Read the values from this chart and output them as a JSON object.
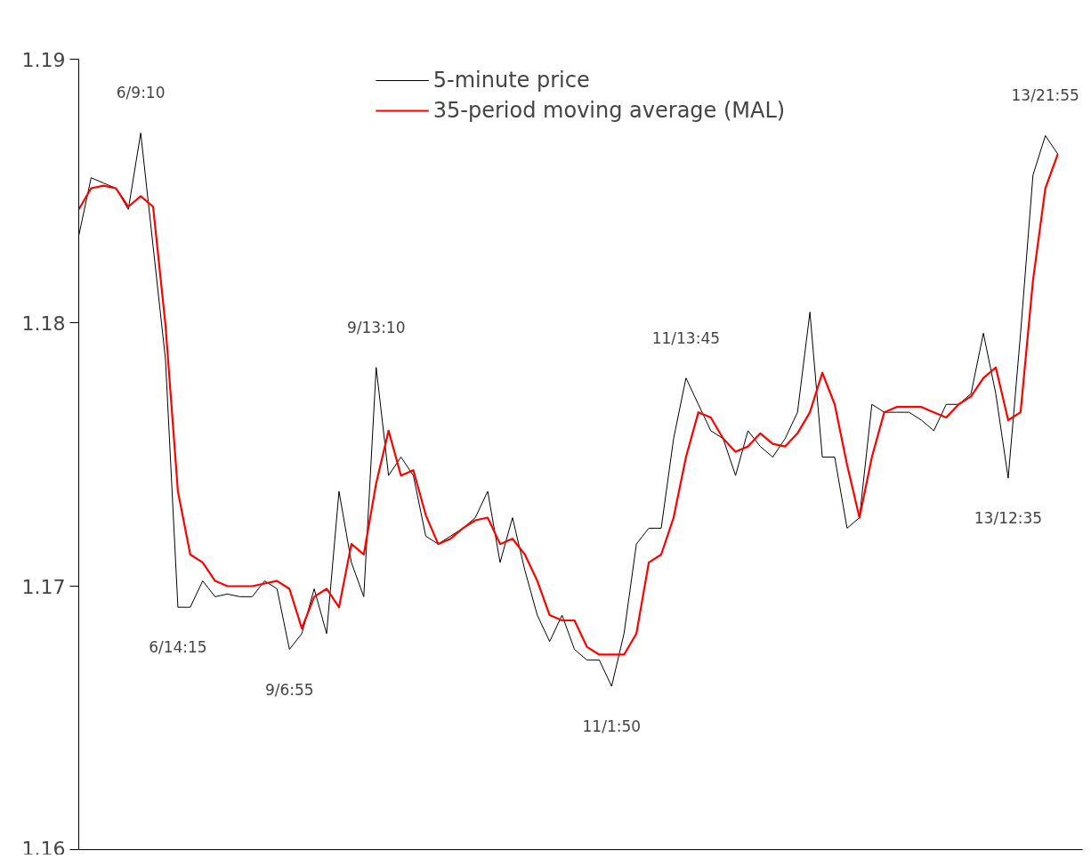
{
  "chart_data": {
    "type": "line",
    "categories": [
      null,
      null,
      null,
      null,
      null,
      null,
      null,
      null,
      null,
      null,
      null,
      null,
      null,
      null,
      null,
      null,
      null,
      null,
      null,
      null,
      null,
      null,
      null,
      null,
      null,
      null,
      null,
      null,
      null,
      null,
      null,
      null,
      null,
      null,
      null,
      null,
      null,
      null,
      null,
      null,
      null,
      null,
      null,
      null,
      null,
      null,
      null,
      null,
      null,
      null,
      null,
      null,
      null,
      null,
      null,
      null,
      null,
      null,
      null,
      null,
      null,
      null,
      null,
      null,
      null,
      null,
      null,
      null,
      null,
      null,
      null,
      null,
      null,
      null,
      null,
      null,
      null,
      null,
      null,
      null
    ],
    "ylim": [
      1.16,
      1.19
    ],
    "yticks": [
      1.16,
      1.17,
      1.18,
      1.19
    ],
    "tick_labels": "y",
    "legend": "top",
    "line_style": "solid",
    "series": [
      {
        "name": "5-minute price",
        "color": "#000000",
        "values": [
          1.1833,
          1.1855,
          1.1853,
          1.1851,
          1.1843,
          1.1872,
          1.1829,
          1.1786,
          1.1692,
          1.1692,
          1.1702,
          1.1696,
          1.1697,
          1.1696,
          1.1696,
          1.1702,
          1.1699,
          1.1676,
          1.1682,
          1.1699,
          1.1682,
          1.1736,
          1.1709,
          1.1696,
          1.1783,
          1.1742,
          1.1749,
          1.1742,
          1.1719,
          1.1716,
          1.1719,
          1.1722,
          1.1726,
          1.1736,
          1.1709,
          1.1726,
          1.1706,
          1.1689,
          1.1679,
          1.1689,
          1.1676,
          1.1672,
          1.1672,
          1.1662,
          1.1682,
          1.1716,
          1.1722,
          1.1722,
          1.1756,
          1.1779,
          1.1769,
          1.1759,
          1.1756,
          1.1742,
          1.1759,
          1.1753,
          1.1749,
          1.1756,
          1.1766,
          1.1804,
          1.1749,
          1.1749,
          1.1722,
          1.1726,
          1.1769,
          1.1766,
          1.1766,
          1.1766,
          1.1763,
          1.1759,
          1.1769,
          1.1769,
          1.1773,
          1.1796,
          1.1773,
          1.1741,
          1.1796,
          1.1856,
          1.1871,
          1.1864
        ]
      },
      {
        "name": "35-period moving average (MAL)",
        "color": "#ff0000",
        "values": [
          1.1843,
          1.1851,
          1.1852,
          1.1851,
          1.1844,
          1.1848,
          1.1844,
          1.1799,
          1.1736,
          1.1712,
          1.1709,
          1.1702,
          1.17,
          1.17,
          1.17,
          1.1701,
          1.1702,
          1.1699,
          1.1684,
          1.1696,
          1.1699,
          1.1692,
          1.1716,
          1.1712,
          1.1739,
          1.1759,
          1.1742,
          1.1744,
          1.1727,
          1.1716,
          1.1718,
          1.1722,
          1.1725,
          1.1726,
          1.1716,
          1.1718,
          1.1712,
          1.1702,
          1.1689,
          1.1687,
          1.1687,
          1.1677,
          1.1674,
          1.1674,
          1.1674,
          1.1682,
          1.1709,
          1.1712,
          1.1726,
          1.1749,
          1.1766,
          1.1764,
          1.1756,
          1.1751,
          1.1753,
          1.1758,
          1.1754,
          1.1753,
          1.1758,
          1.1766,
          1.1781,
          1.1769,
          1.1746,
          1.1726,
          1.1749,
          1.1766,
          1.1768,
          1.1768,
          1.1768,
          1.1766,
          1.1764,
          1.1769,
          1.1772,
          1.1779,
          1.1783,
          1.1763,
          1.1766,
          1.1816,
          1.1851,
          1.1864
        ]
      }
    ],
    "annotations": [
      {
        "text": "6/9:10",
        "y": 1.1872
      },
      {
        "text": "9/13:10",
        "y": 1.1783
      },
      {
        "text": "11/13:45",
        "y": 1.1779
      },
      {
        "text": "13/21:55",
        "y": 1.1871
      },
      {
        "text": "6/14:15",
        "y": 1.1692
      },
      {
        "text": "9/6:55",
        "y": 1.1676
      },
      {
        "text": "11/1:50",
        "y": 1.1662
      },
      {
        "text": "13/12:35",
        "y": 1.1741
      }
    ]
  }
}
